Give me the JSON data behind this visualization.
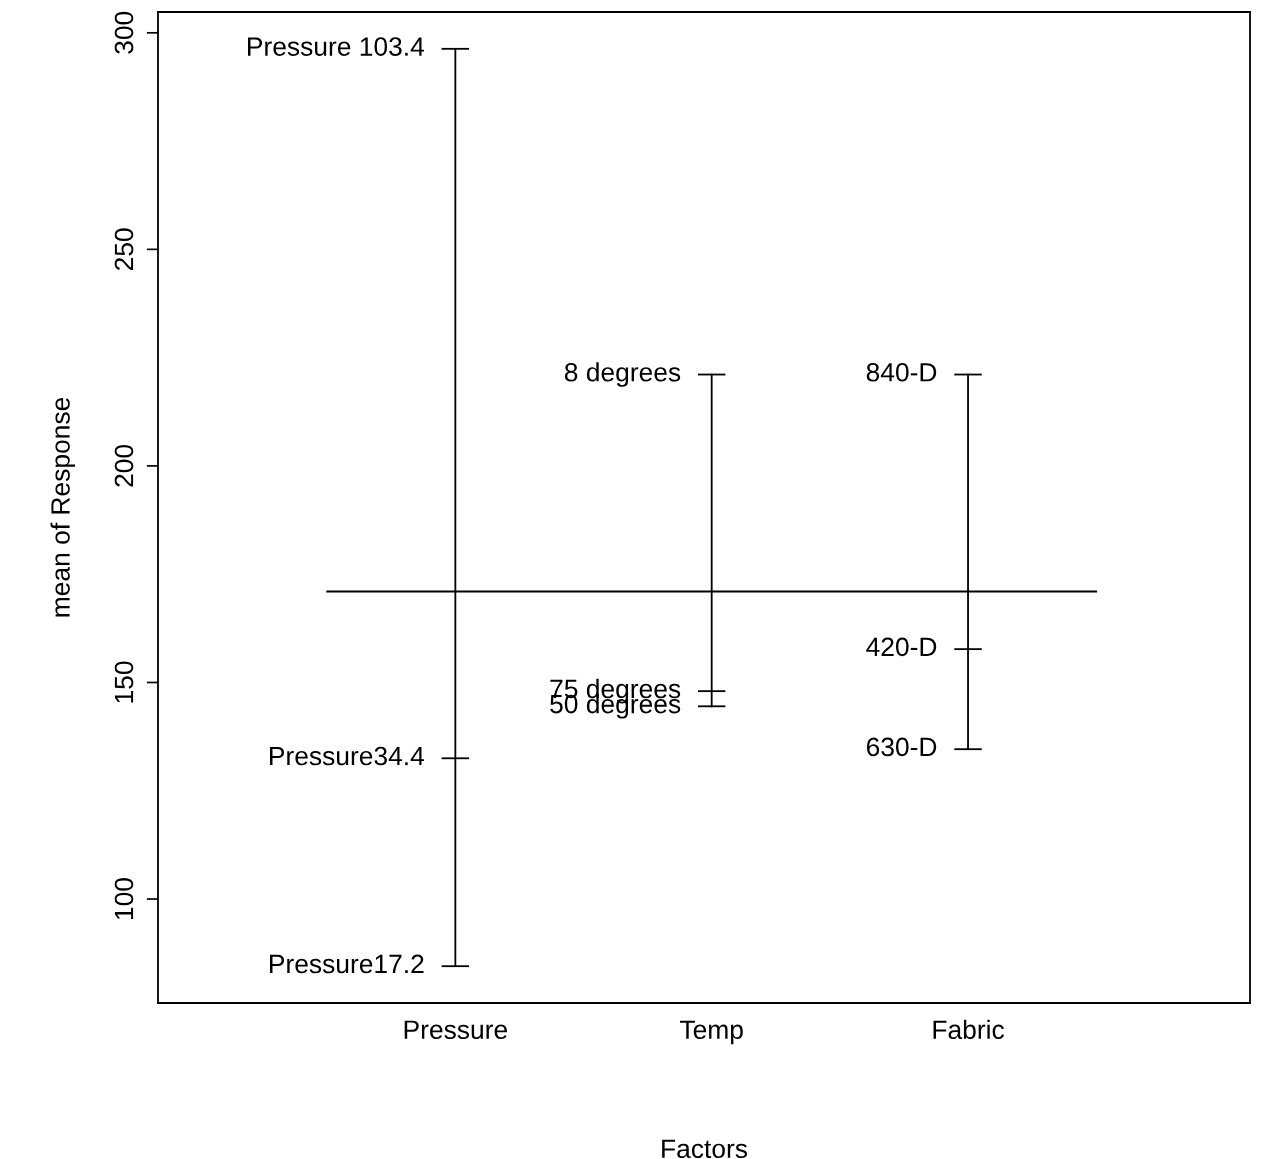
{
  "chart_data": {
    "type": "line",
    "xlabel": "Factors",
    "ylabel": "mean of Response",
    "categories": [
      "Pressure",
      "Temp",
      "Fabric"
    ],
    "series": [
      {
        "x": [
          "Pressure",
          "Pressure",
          "Pressure"
        ],
        "values": [
          296.3,
          132.5,
          84.5
        ],
        "color": "#000000"
      },
      {
        "x": [
          "Temp",
          "Temp",
          "Temp"
        ],
        "values": [
          221.1,
          148.0,
          144.5
        ],
        "color": "#000000"
      },
      {
        "x": [
          "Fabric",
          "Fabric",
          "Fabric"
        ],
        "values": [
          221.1,
          157.7,
          134.6
        ],
        "color": "#000000"
      }
    ],
    "annotations": [
      {
        "text": "Pressure 103.4",
        "x": "Pressure",
        "y": 296.3
      },
      {
        "text": "Pressure34.4",
        "x": "Pressure",
        "y": 132.5
      },
      {
        "text": "Pressure17.2",
        "x": "Pressure",
        "y": 84.5
      },
      {
        "text": "8 degrees",
        "x": "Temp",
        "y": 221.1
      },
      {
        "text": "75 degrees",
        "x": "Temp",
        "y": 148.0
      },
      {
        "text": "50 degrees",
        "x": "Temp",
        "y": 144.5
      },
      {
        "text": "840-D",
        "x": "Fabric",
        "y": 221.1
      },
      {
        "text": "420-D",
        "x": "Fabric",
        "y": 157.7
      },
      {
        "text": "630-D",
        "x": "Fabric",
        "y": 134.6
      }
    ],
    "line_style": "solid",
    "grid": false,
    "legend": false,
    "ylim": [
      76.0,
      304.8
    ],
    "yticks": [
      100,
      150,
      200,
      250,
      300
    ],
    "ref_lines": [
      {
        "axis": "y",
        "value": 171.0,
        "color": "#000000"
      }
    ]
  }
}
